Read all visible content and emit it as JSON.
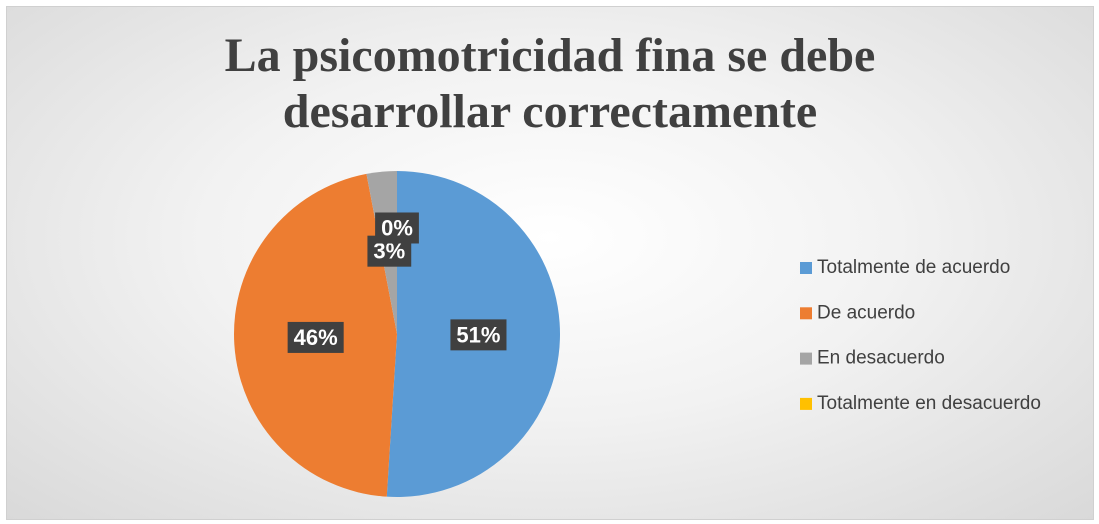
{
  "chart_data": {
    "type": "pie",
    "title": "La psicomotricidad fina se debe desarrollar correctamente",
    "categories": [
      "Totalmente de acuerdo",
      "De acuerdo",
      "En desacuerdo",
      "Totalmente en desacuerdo"
    ],
    "values": [
      51,
      46,
      3,
      0
    ],
    "value_labels": [
      "51%",
      "46%",
      "3%",
      "0%"
    ],
    "colors": [
      "#5b9bd5",
      "#ed7d31",
      "#a5a5a5",
      "#ffc000"
    ],
    "legend": "right"
  }
}
